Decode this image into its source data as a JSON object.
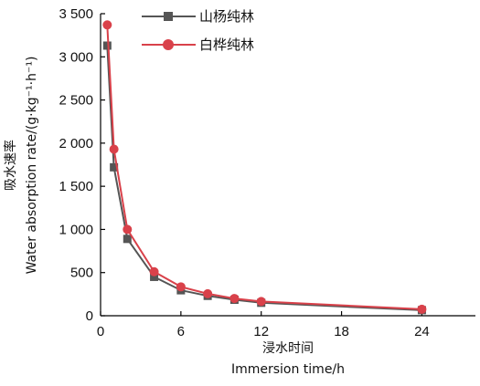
{
  "chart_data": {
    "type": "line",
    "title": "",
    "xlabel_cn": "浸水时间",
    "xlabel_en": "Immersion time/h",
    "ylabel_cn": "吸水速率",
    "ylabel_en": "Water absorption rate/(g·kg⁻¹·h⁻¹)",
    "xlim": [
      0,
      28
    ],
    "ylim": [
      0,
      3500
    ],
    "x_ticks": [
      0,
      6,
      12,
      18,
      24
    ],
    "x_tick_labels": [
      "0",
      "6",
      "12",
      "18",
      "24"
    ],
    "y_ticks": [
      0,
      500,
      1000,
      1500,
      2000,
      2500,
      3000,
      3500
    ],
    "y_tick_labels": [
      "0",
      "500",
      "1 000",
      "1 500",
      "2 000",
      "2 500",
      "3 000",
      "3 500"
    ],
    "grid": false,
    "legend_position": "top-left",
    "x": [
      0.5,
      1,
      2,
      4,
      6,
      8,
      10,
      12,
      24
    ],
    "series": [
      {
        "name": "山杨纯林",
        "marker": "square",
        "color": "#555555",
        "values": [
          3130,
          1720,
          890,
          450,
          295,
          230,
          185,
          150,
          65
        ]
      },
      {
        "name": "白桦纯林",
        "marker": "circle",
        "color": "#d9414a",
        "values": [
          3370,
          1930,
          1000,
          510,
          335,
          255,
          200,
          165,
          75
        ]
      }
    ]
  }
}
